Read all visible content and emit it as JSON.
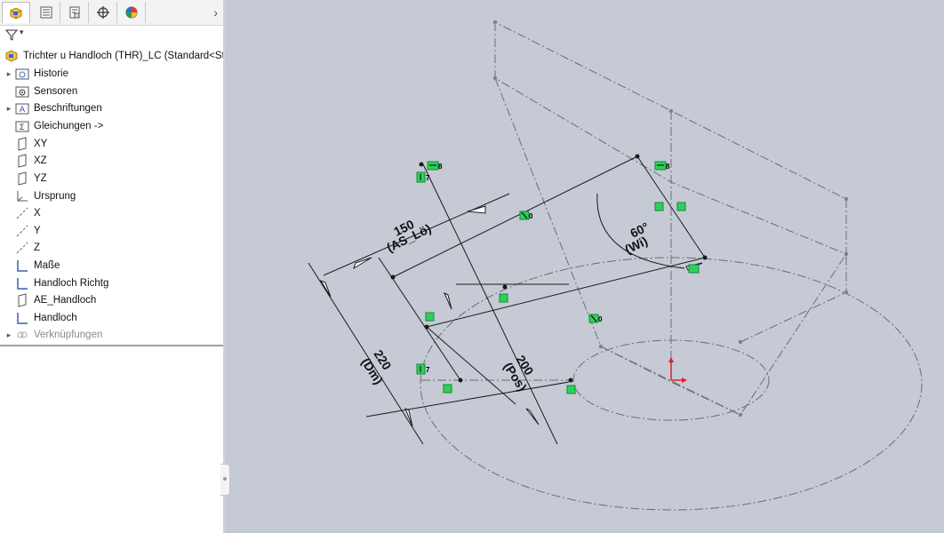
{
  "feature_manager": {
    "root_label": "Trichter u Handloch (THR)_LC  (Standard<Stan",
    "tabs": [
      {
        "name": "feature-manager-tab"
      },
      {
        "name": "property-manager-tab"
      },
      {
        "name": "configuration-manager-tab"
      },
      {
        "name": "dimxpert-tab"
      },
      {
        "name": "display-manager-tab"
      }
    ],
    "more_arrow": "›",
    "filter_caret": "▾",
    "items": [
      {
        "label": "Historie",
        "icon": "history-folder-icon",
        "expandable": true
      },
      {
        "label": "Sensoren",
        "icon": "sensors-folder-icon",
        "expandable": false
      },
      {
        "label": "Beschriftungen",
        "icon": "annotations-folder-icon",
        "expandable": true
      },
      {
        "label": "Gleichungen ->",
        "icon": "equations-folder-icon",
        "expandable": false
      },
      {
        "label": "XY",
        "icon": "plane-icon",
        "expandable": false
      },
      {
        "label": "XZ",
        "icon": "plane-icon",
        "expandable": false
      },
      {
        "label": "YZ",
        "icon": "plane-icon",
        "expandable": false
      },
      {
        "label": "Ursprung",
        "icon": "origin-icon",
        "expandable": false
      },
      {
        "label": "X",
        "icon": "axis-icon",
        "expandable": false
      },
      {
        "label": "Y",
        "icon": "axis-icon",
        "expandable": false
      },
      {
        "label": "Z",
        "icon": "axis-icon",
        "expandable": false
      },
      {
        "label": "Maße",
        "icon": "sketch-icon",
        "expandable": false
      },
      {
        "label": "Handloch Richtg",
        "icon": "sketch-icon",
        "expandable": false
      },
      {
        "label": "AE_Handloch",
        "icon": "plane-icon",
        "expandable": false
      },
      {
        "label": "Handloch",
        "icon": "sketch-icon",
        "expandable": false
      },
      {
        "label": "Verknüpfungen",
        "icon": "mates-icon",
        "expandable": true,
        "greyed": true
      }
    ]
  },
  "sketch": {
    "dimensions": {
      "d150_value": "150",
      "d150_name": "(AS_Lö)",
      "d220_value": "220",
      "d220_name": "(Dm)",
      "d200_value": "200",
      "d200_name": "(Pos)",
      "angle_value": "60°",
      "angle_name": "(Wi)"
    },
    "relation_glyphs": {
      "eight": "8",
      "seven": "7",
      "zero": "0"
    }
  },
  "colors": {
    "viewport_bg": "#c6cad5",
    "relation_green": "#2fd05a",
    "origin_red": "#e02020"
  }
}
